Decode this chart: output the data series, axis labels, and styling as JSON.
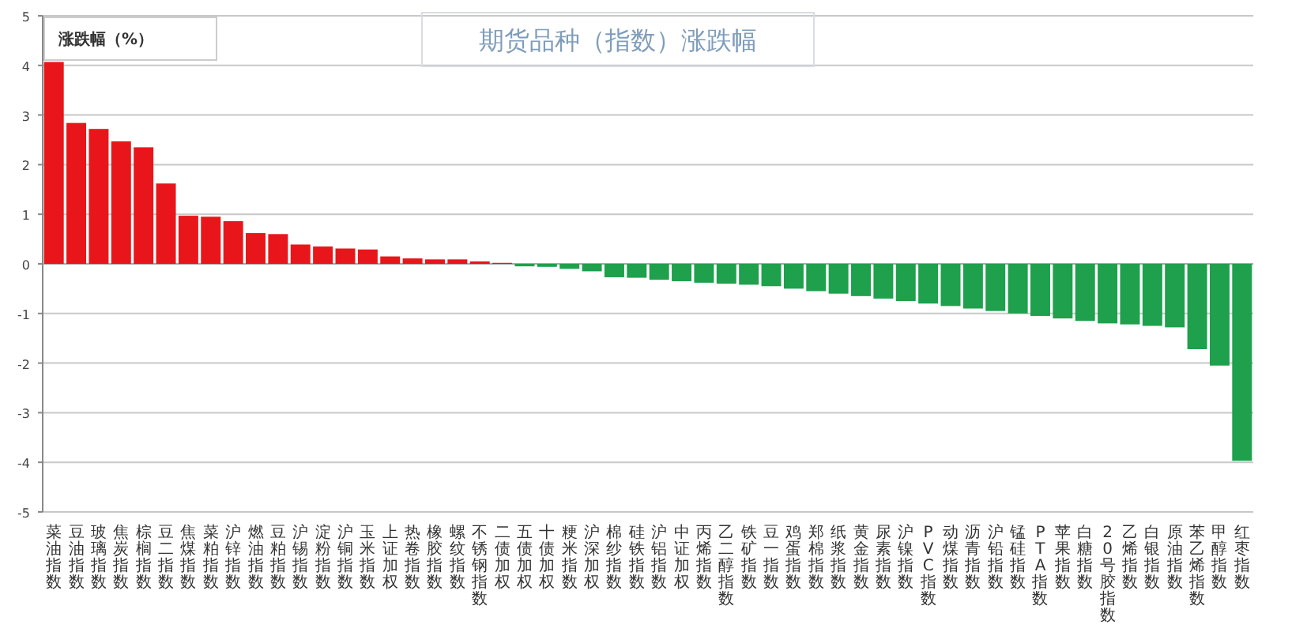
{
  "chart_data": {
    "type": "bar",
    "title": "期货品种（指数）涨跌幅",
    "ylabel": "涨跌幅（%）",
    "categories": [
      "菜油指数",
      "豆油指数",
      "玻璃指数",
      "焦炭指数",
      "棕榈指数",
      "豆二指数",
      "焦煤指数",
      "菜粕指数",
      "沪锌指数",
      "燃油指数",
      "豆粕指数",
      "沪锡指数",
      "淀粉指数",
      "沪铜指数",
      "玉米指数",
      "上证加权",
      "热卷指数",
      "橡胶指数",
      "螺纹指数",
      "不锈钢指数",
      "二债加权",
      "五债加权",
      "十债加权",
      "粳米指数",
      "沪深加权",
      "棉纱指数",
      "硅铁指数",
      "沪铝指数",
      "中证加权",
      "丙烯指数",
      "乙二醇指数",
      "铁矿指数",
      "豆一指数",
      "鸡蛋指数",
      "郑棉指数",
      "纸浆指数",
      "黄金指数",
      "尿素指数",
      "沪镍指数",
      "PVC指数",
      "动煤指数",
      "沥青指数",
      "沪铅指数",
      "锰硅指数",
      "PTA指数",
      "苹果指数",
      "白糖指数",
      "20号胶指数",
      "乙烯指数",
      "白银指数",
      "原油指数",
      "苯乙烯指数",
      "甲醇指数",
      "红枣指数"
    ],
    "values": [
      4.07,
      2.84,
      2.72,
      2.47,
      2.35,
      1.62,
      0.97,
      0.95,
      0.86,
      0.62,
      0.6,
      0.39,
      0.35,
      0.31,
      0.29,
      0.15,
      0.11,
      0.09,
      0.09,
      0.05,
      0.02,
      -0.05,
      -0.06,
      -0.1,
      -0.15,
      -0.27,
      -0.28,
      -0.32,
      -0.35,
      -0.38,
      -0.4,
      -0.42,
      -0.45,
      -0.5,
      -0.55,
      -0.6,
      -0.65,
      -0.7,
      -0.75,
      -0.8,
      -0.85,
      -0.9,
      -0.95,
      -1.0,
      -1.05,
      -1.1,
      -1.15,
      -1.2,
      -1.22,
      -1.25,
      -1.28,
      -1.72,
      -2.05,
      -3.97
    ],
    "colors": [
      "#e8161a",
      "#e8161a",
      "#e8161a",
      "#e8161a",
      "#e8161a",
      "#e8161a",
      "#e8161a",
      "#e8161a",
      "#e8161a",
      "#e8161a",
      "#e8161a",
      "#e8161a",
      "#e8161a",
      "#e8161a",
      "#e8161a",
      "#e8161a",
      "#e8161a",
      "#e8161a",
      "#e8161a",
      "#e8161a",
      "#e8161a",
      "#1ea04c",
      "#1ea04c",
      "#1ea04c",
      "#1ea04c",
      "#1ea04c",
      "#1ea04c",
      "#1ea04c",
      "#1ea04c",
      "#1ea04c",
      "#1ea04c",
      "#1ea04c",
      "#1ea04c",
      "#1ea04c",
      "#1ea04c",
      "#1ea04c",
      "#1ea04c",
      "#1ea04c",
      "#1ea04c",
      "#1ea04c",
      "#1ea04c",
      "#1ea04c",
      "#1ea04c",
      "#1ea04c",
      "#1ea04c",
      "#1ea04c",
      "#1ea04c",
      "#1ea04c",
      "#1ea04c",
      "#1ea04c",
      "#1ea04c",
      "#1ea04c",
      "#1ea04c",
      "#1ea04c"
    ],
    "ylim": [
      -5,
      5
    ],
    "yticks": [
      -5,
      -4,
      -3,
      -2,
      -1,
      0,
      1,
      2,
      3,
      4,
      5
    ],
    "grid": "y"
  }
}
